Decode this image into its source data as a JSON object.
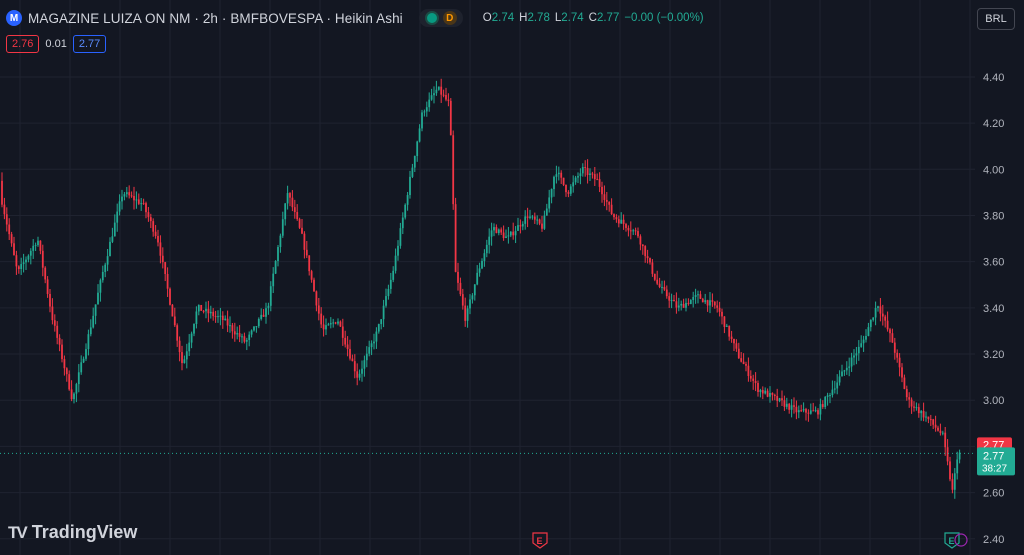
{
  "header": {
    "symbol_icon": "M",
    "title": "MAGAZINE LUIZA ON NM · 2h · BMFBOVESPA · Heikin Ashi",
    "d_badge": "D",
    "ohlc": [
      {
        "k": "O",
        "v": "2.74"
      },
      {
        "k": "H",
        "v": "2.78"
      },
      {
        "k": "L",
        "v": "2.74"
      },
      {
        "k": "C",
        "v": "2.77"
      },
      {
        "k": "",
        "v": "−0.00 (−0.00%)"
      }
    ]
  },
  "quote": {
    "bid": "2.76",
    "spread": "0.01",
    "ask": "2.77"
  },
  "currency_button": "BRL",
  "logo_text": "TradingView",
  "price_labels": {
    "bid": "2.77",
    "last": "2.77",
    "countdown": "38:27"
  },
  "event_markers": [
    {
      "label": "E",
      "color": "#f23645"
    },
    {
      "label": "E",
      "color": "#22ab94"
    }
  ],
  "colors": {
    "up": "#22ab94",
    "down": "#f23645",
    "background": "#131722",
    "grid": "#1f2330"
  },
  "chart_data": {
    "type": "candlestick",
    "style": "Heikin Ashi",
    "ylim": [
      2.36,
      4.56
    ],
    "y_ticks": [
      2.4,
      2.6,
      2.8,
      3.0,
      3.2,
      3.4,
      3.6,
      3.8,
      4.0,
      4.2,
      4.4
    ],
    "y_tick_labels": [
      "2.40",
      "2.60",
      "2.80",
      "3.00",
      "3.20",
      "3.40",
      "3.60",
      "3.80",
      "4.00",
      "4.20",
      "4.40"
    ],
    "current_price": 2.77,
    "candle_count": 400,
    "price_path": [
      [
        0,
        3.95
      ],
      [
        20,
        3.55
      ],
      [
        40,
        3.7
      ],
      [
        55,
        3.35
      ],
      [
        75,
        3.0
      ],
      [
        92,
        3.3
      ],
      [
        105,
        3.55
      ],
      [
        125,
        3.9
      ],
      [
        145,
        3.85
      ],
      [
        160,
        3.7
      ],
      [
        185,
        3.15
      ],
      [
        200,
        3.4
      ],
      [
        225,
        3.35
      ],
      [
        248,
        3.25
      ],
      [
        270,
        3.4
      ],
      [
        290,
        3.9
      ],
      [
        305,
        3.7
      ],
      [
        325,
        3.3
      ],
      [
        340,
        3.35
      ],
      [
        360,
        3.1
      ],
      [
        380,
        3.3
      ],
      [
        395,
        3.55
      ],
      [
        410,
        3.9
      ],
      [
        425,
        4.25
      ],
      [
        440,
        4.35
      ],
      [
        452,
        4.28
      ],
      [
        458,
        3.55
      ],
      [
        468,
        3.35
      ],
      [
        480,
        3.55
      ],
      [
        495,
        3.75
      ],
      [
        510,
        3.7
      ],
      [
        530,
        3.8
      ],
      [
        545,
        3.75
      ],
      [
        558,
        4.0
      ],
      [
        570,
        3.9
      ],
      [
        585,
        4.0
      ],
      [
        600,
        3.95
      ],
      [
        615,
        3.8
      ],
      [
        640,
        3.72
      ],
      [
        660,
        3.5
      ],
      [
        680,
        3.4
      ],
      [
        700,
        3.45
      ],
      [
        720,
        3.4
      ],
      [
        740,
        3.2
      ],
      [
        760,
        3.05
      ],
      [
        780,
        3.0
      ],
      [
        800,
        2.95
      ],
      [
        820,
        2.95
      ],
      [
        835,
        3.05
      ],
      [
        850,
        3.15
      ],
      [
        865,
        3.25
      ],
      [
        880,
        3.42
      ],
      [
        895,
        3.25
      ],
      [
        910,
        3.0
      ],
      [
        930,
        2.92
      ],
      [
        945,
        2.85
      ],
      [
        955,
        2.6
      ],
      [
        960,
        2.77
      ]
    ]
  }
}
